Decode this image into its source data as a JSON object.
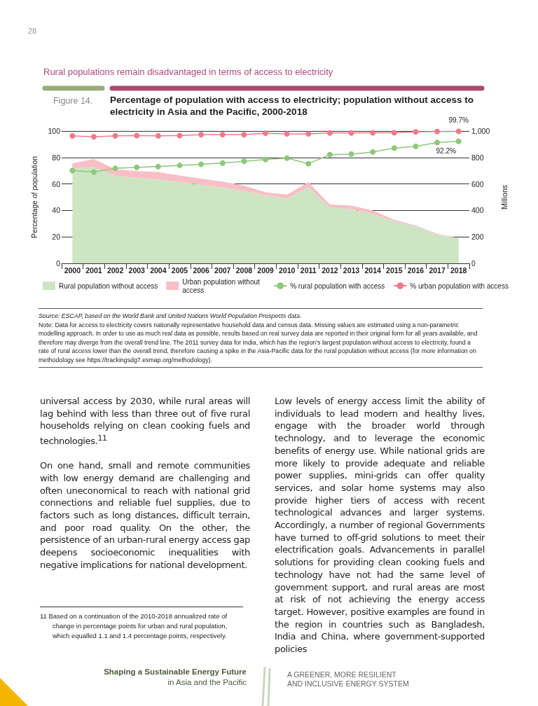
{
  "chart_data": {
    "type": "area",
    "title": "Percentage of population with access to electricity; population without access to electricity in Asia and the Pacific, 2000-2018",
    "subtitle": "Rural populations remain disadvantaged in terms of access to electricity",
    "ylabel": "Percentage of population",
    "y2label": "Millions",
    "categories": [
      "2000",
      "2001",
      "2002",
      "2003",
      "2004",
      "2005",
      "2006",
      "2007",
      "2008",
      "2009",
      "2010",
      "2011",
      "2012",
      "2013",
      "2014",
      "2015",
      "2016",
      "2017",
      "2018"
    ],
    "stacked": true,
    "series": [
      {
        "name": "Rural population without access",
        "marker": "none",
        "axis": "y2",
        "color": "#cde5c3",
        "values": [
          716,
          727,
          662,
          646,
          633,
          614,
          594,
          572,
          546,
          515,
          489,
          574,
          421,
          410,
          373,
          317,
          279,
          218,
          188
        ]
      },
      {
        "name": "Urban population without access",
        "marker": "none",
        "axis": "y2",
        "color": "#f8c0c6",
        "values": [
          39,
          61,
          50,
          51,
          57,
          50,
          46,
          46,
          41,
          22,
          31,
          40,
          24,
          27,
          27,
          13,
          7,
          5,
          3
        ]
      },
      {
        "name": "% rural population with access",
        "type": "line",
        "axis": "y",
        "color": "#8cc97a",
        "values": [
          70.1,
          69.0,
          71.8,
          72.5,
          73.1,
          74.0,
          74.9,
          75.8,
          77.1,
          78.4,
          79.5,
          75.3,
          82.1,
          82.5,
          84.1,
          87.1,
          88.4,
          91.3,
          92.2
        ],
        "value_labels": [
          null,
          null,
          null,
          null,
          null,
          null,
          null,
          null,
          null,
          null,
          null,
          null,
          null,
          null,
          null,
          null,
          null,
          null,
          "92.2%"
        ]
      },
      {
        "name": "% urban population with access",
        "type": "line",
        "axis": "y",
        "color": "#f07a8a",
        "values": [
          96.3,
          95.6,
          96.3,
          96.5,
          96.3,
          96.5,
          97.2,
          97.2,
          97.2,
          98.3,
          97.8,
          97.8,
          98.5,
          98.5,
          98.7,
          98.7,
          99.3,
          99.6,
          99.7
        ],
        "value_labels": [
          null,
          null,
          null,
          null,
          null,
          null,
          null,
          null,
          null,
          null,
          null,
          null,
          null,
          null,
          null,
          null,
          null,
          null,
          "99.7%"
        ]
      }
    ],
    "ylim": [
      0,
      100
    ],
    "yticks": [
      0,
      20,
      40,
      60,
      80,
      100
    ],
    "y2lim": [
      0,
      1000
    ],
    "y2ticks": [
      0,
      200,
      400,
      600,
      800,
      {
        "value": 1000,
        "label": "1,000"
      }
    ],
    "grid": "y",
    "legend": "bottom",
    "marker": "circle",
    "annotations": [
      "28",
      "Figure  14.",
      "Source:  ESCAP, based on the World Bank and United Nations World Population Prospects data.",
      "Note:  Data for access to electricity covers nationally representative household data and census data. Missing values are estimated using a non-parametric modelling approach. In order to use as much real data as possible, results based on real survey data are reported in their original form for all years available, and therefore may diverge from the overall trend line. The 2011 survey data for India, which has the region’s largest population without access to electricity, found a rate of rural access lower than the overall trend, therefore causing a spike in the Asia-Pacific data for the rural population without access (for more information on methodology see https://trackingsdg7.esmap.org/methodology).",
      "universal access by 2030, while rural areas will lag behind with less than three out of five rural households relying on clean cooking fuels and technologies.$^{11}$",
      "On one hand, small and remote communities with low energy demand are challenging and often uneconomical to reach with national grid connections and reliable fuel supplies, due to factors such as long distances, difficult terrain, and poor road quality. On the other, the persistence of an urban-rural energy access gap deepens socioeconomic inequalities with negative implications for national development.",
      "11  Based on a continuation of the 2010-2018 annualized rate of change in percentage points for urban and rural population, which equalled 1.1 and 1.4 percentage points, respectively.",
      "Low levels of energy access limit the ability of individuals to lead modern and healthy lives, engage with the broader world through technology, and to leverage the economic benefits of energy use. While national grids are more likely to provide adequate and reliable power supplies, mini-grids can offer quality services, and solar home systems may also provide higher tiers of access with recent technological advances and larger systems. Accordingly, a number of regional Governments have turned to off-grid solutions to meet their electrification goals. Advancements in parallel solutions for providing clean cooking fuels and technology have not had the same level of government support, and rural areas are most at risk of not achieving the energy access target. However, positive examples are found in the region in countries such as Bangladesh, India and China, where government-supported policies",
      "Shaping a Sustainable Energy Future",
      "in Asia and the Pacific",
      "A GREENER, MORE RESILIENT AND INCLUSIVE ENERGY SYSTEM"
    ]
  }
}
